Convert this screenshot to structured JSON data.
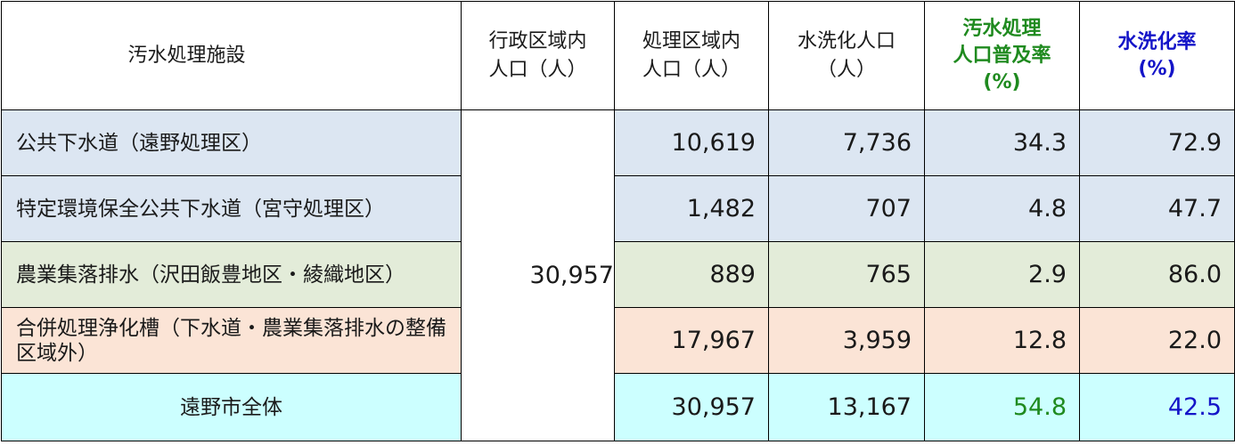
{
  "headers": {
    "facility": "汚水処理施設",
    "admin_pop": [
      "行政区域内",
      "人口（人）"
    ],
    "service_pop": [
      "処理区域内",
      "人口（人）"
    ],
    "flush_pop": [
      "水洗化人口",
      "（人）"
    ],
    "coverage": [
      "汚水処理",
      "人口普及率",
      "(%)"
    ],
    "flush_rate": [
      "水洗化率",
      "(%)"
    ]
  },
  "admin_population": "30,957",
  "rows": [
    {
      "name": "公共下水道（遠野処理区）",
      "service_pop": "10,619",
      "flush_pop": "7,736",
      "coverage": "34.3",
      "flush_rate": "72.9"
    },
    {
      "name": "特定環境保全公共下水道（宮守処理区）",
      "service_pop": "1,482",
      "flush_pop": "707",
      "coverage": "4.8",
      "flush_rate": "47.7"
    },
    {
      "name": "農業集落排水（沢田飯豊地区・綾織地区）",
      "service_pop": "889",
      "flush_pop": "765",
      "coverage": "2.9",
      "flush_rate": "86.0"
    },
    {
      "name": "合併処理浄化槽（下水道・農業集落排水の整備区域外）",
      "service_pop": "17,967",
      "flush_pop": "3,959",
      "coverage": "12.8",
      "flush_rate": "22.0"
    }
  ],
  "total": {
    "name": "遠野市全体",
    "service_pop": "30,957",
    "flush_pop": "13,167",
    "coverage": "54.8",
    "flush_rate": "42.5"
  },
  "colors": {
    "sewer_bg": "#dce6f2",
    "rural_bg": "#e3ecd9",
    "septic_bg": "#fbe4d6",
    "total_bg": "#ccffff",
    "coverage_text": "#1f8a1f",
    "flush_rate_text": "#1414c8"
  }
}
